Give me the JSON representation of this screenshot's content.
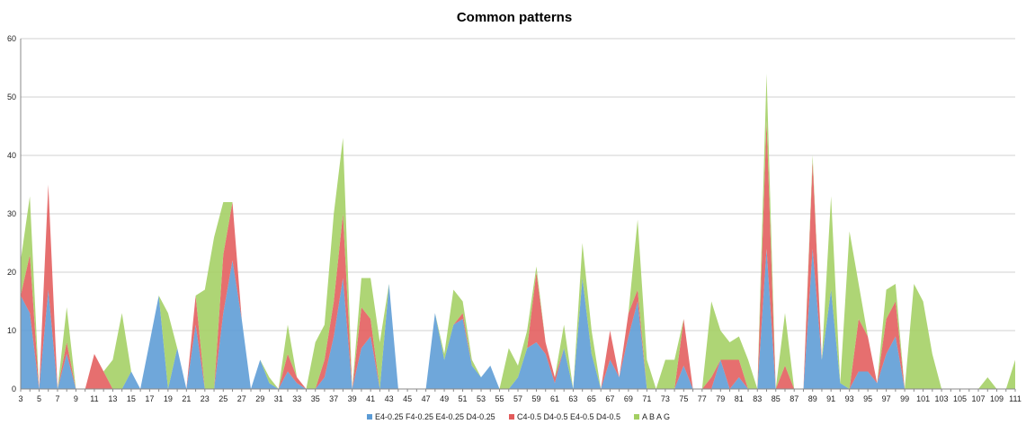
{
  "chart_data": {
    "type": "area",
    "stacked": true,
    "title": "Common patterns",
    "xlabel": "",
    "ylabel": "",
    "ylim": [
      0,
      60
    ],
    "yticks": [
      0,
      10,
      20,
      30,
      40,
      50,
      60
    ],
    "grid": "horizontal",
    "legend_position": "bottom",
    "x": [
      3,
      4,
      5,
      6,
      7,
      8,
      9,
      10,
      11,
      12,
      13,
      14,
      15,
      16,
      17,
      18,
      19,
      20,
      21,
      22,
      23,
      24,
      25,
      26,
      27,
      28,
      29,
      30,
      31,
      32,
      33,
      34,
      35,
      36,
      37,
      38,
      39,
      40,
      41,
      42,
      43,
      44,
      45,
      46,
      47,
      48,
      49,
      50,
      51,
      52,
      53,
      54,
      55,
      56,
      57,
      58,
      59,
      60,
      61,
      62,
      63,
      64,
      65,
      66,
      67,
      68,
      69,
      70,
      71,
      72,
      73,
      74,
      75,
      76,
      77,
      78,
      79,
      80,
      81,
      82,
      83,
      84,
      85,
      86,
      87,
      88,
      89,
      90,
      91,
      92,
      93,
      94,
      95,
      96,
      97,
      98,
      99,
      100,
      101,
      102,
      103,
      104,
      105,
      106,
      107,
      108,
      109,
      110,
      111
    ],
    "xticks": [
      3,
      5,
      7,
      9,
      11,
      13,
      15,
      17,
      19,
      21,
      23,
      25,
      27,
      29,
      31,
      33,
      35,
      37,
      39,
      41,
      43,
      45,
      47,
      49,
      51,
      53,
      55,
      57,
      59,
      61,
      63,
      65,
      67,
      69,
      71,
      73,
      75,
      77,
      79,
      81,
      83,
      85,
      87,
      89,
      91,
      93,
      95,
      97,
      99,
      101,
      103,
      105,
      107,
      109,
      111
    ],
    "series": [
      {
        "name": "E4-0.25 F4-0.25 E4-0.25 D4-0.25",
        "color": "#5b9bd5",
        "values": [
          16,
          13,
          0,
          17,
          0,
          6,
          0,
          0,
          0,
          0,
          0,
          0,
          3,
          0,
          8,
          16,
          0,
          7,
          0,
          11,
          0,
          0,
          13,
          22,
          12,
          0,
          5,
          1,
          0,
          3,
          1,
          0,
          0,
          2,
          9,
          19,
          0,
          7,
          9,
          0,
          18,
          0,
          0,
          0,
          0,
          13,
          5,
          11,
          12,
          4,
          2,
          4,
          0,
          0,
          2,
          7,
          8,
          6,
          1,
          7,
          0,
          19,
          6,
          0,
          5,
          2,
          9,
          15,
          0,
          0,
          0,
          0,
          4,
          0,
          0,
          0,
          5,
          0,
          2,
          0,
          0,
          24,
          0,
          0,
          0,
          0,
          24,
          5,
          17,
          1,
          0,
          3,
          3,
          1,
          6,
          9,
          0,
          0,
          0,
          0,
          0,
          0,
          0,
          0,
          0,
          0,
          0,
          0,
          0
        ]
      },
      {
        "name": "C4-0.5 D4-0.5 E4-0.5 D4-0.5",
        "color": "#e25b5b",
        "values": [
          0,
          10,
          0,
          18,
          0,
          2,
          0,
          0,
          6,
          3,
          0,
          0,
          0,
          0,
          0,
          0,
          0,
          0,
          0,
          5,
          0,
          0,
          10,
          10,
          0,
          0,
          0,
          0,
          0,
          3,
          1,
          0,
          0,
          3,
          6,
          11,
          0,
          7,
          3,
          0,
          0,
          0,
          0,
          0,
          0,
          0,
          0,
          0,
          1,
          0,
          0,
          0,
          0,
          0,
          0,
          0,
          12,
          2,
          1,
          0,
          0,
          0,
          0,
          0,
          5,
          0,
          4,
          2,
          0,
          0,
          0,
          0,
          8,
          0,
          0,
          2,
          0,
          5,
          3,
          0,
          0,
          22,
          0,
          4,
          0,
          0,
          15,
          0,
          0,
          0,
          0,
          9,
          6,
          0,
          6,
          6,
          0,
          0,
          0,
          0,
          0,
          0,
          0,
          0,
          0,
          0,
          0,
          0,
          0
        ]
      },
      {
        "name": "A B A G",
        "color": "#a3cf62",
        "values": [
          6,
          10,
          0,
          0,
          0,
          6,
          0,
          0,
          0,
          0,
          5,
          13,
          0,
          0,
          0,
          0,
          13,
          0,
          0,
          0,
          17,
          26,
          9,
          0,
          0,
          0,
          0,
          1,
          0,
          5,
          0,
          0,
          8,
          6,
          15,
          13,
          0,
          5,
          7,
          8,
          0,
          0,
          0,
          0,
          0,
          0,
          1,
          6,
          2,
          1,
          0,
          0,
          0,
          7,
          2,
          3,
          1,
          0,
          0,
          4,
          0,
          6,
          4,
          0,
          0,
          0,
          0,
          12,
          5,
          0,
          5,
          5,
          0,
          0,
          0,
          13,
          5,
          3,
          4,
          5,
          0,
          8,
          0,
          9,
          0,
          0,
          1,
          0,
          16,
          0,
          27,
          6,
          0,
          0,
          5,
          3,
          0,
          18,
          15,
          6,
          0,
          0,
          0,
          0,
          0,
          2,
          0,
          0,
          5
        ]
      }
    ]
  }
}
